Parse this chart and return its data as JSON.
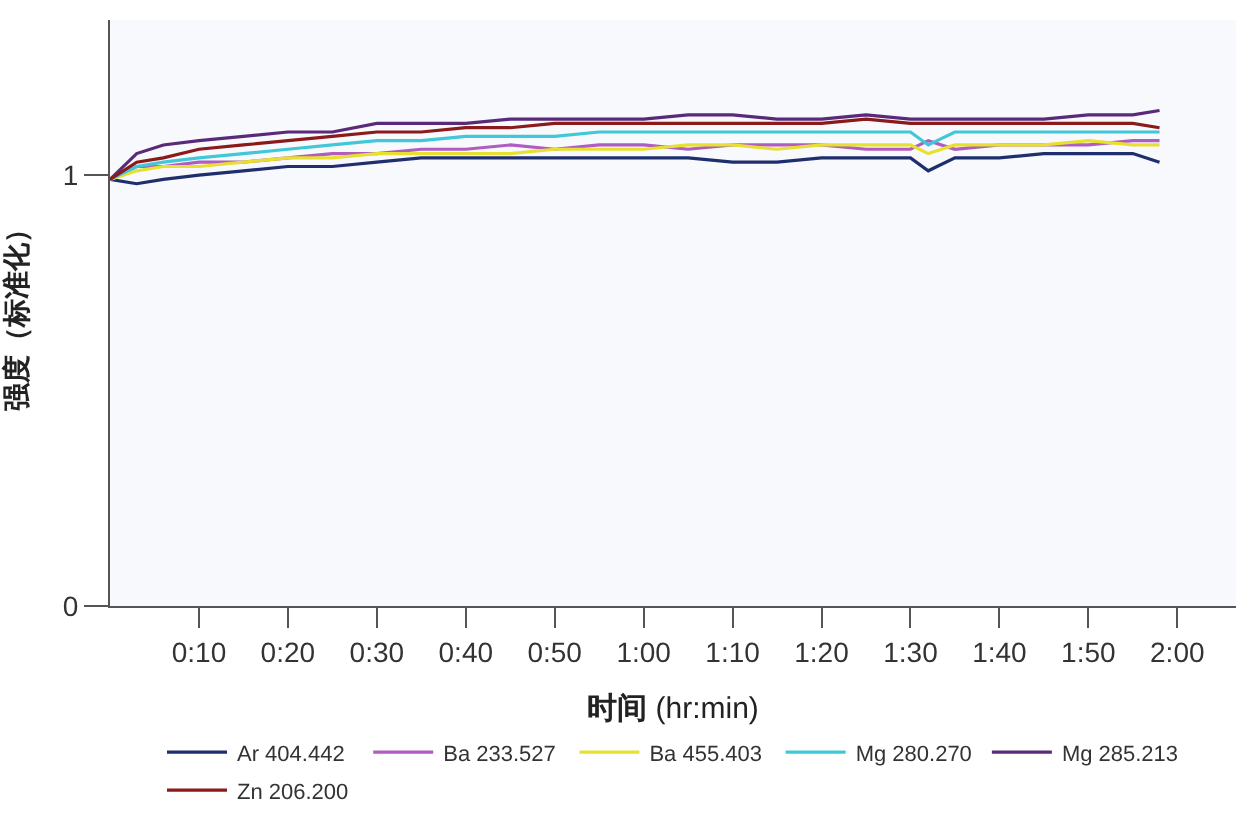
{
  "chart_data": {
    "type": "line",
    "xlabel": "时间 (hr:min)",
    "ylabel": "强度（标准化）",
    "x": [
      0,
      0.05,
      0.1,
      0.1667,
      0.25,
      0.3333,
      0.4167,
      0.5,
      0.5833,
      0.6667,
      0.75,
      0.8333,
      0.9167,
      1.0,
      1.0833,
      1.1667,
      1.25,
      1.3333,
      1.4167,
      1.5,
      1.5333,
      1.5833,
      1.6667,
      1.75,
      1.8333,
      1.9167,
      1.9667
    ],
    "series": [
      {
        "name": "Ar 404.442",
        "color": "#1f2f6e",
        "values": [
          0.99,
          0.98,
          0.99,
          1.0,
          1.01,
          1.02,
          1.02,
          1.03,
          1.04,
          1.04,
          1.04,
          1.04,
          1.04,
          1.04,
          1.04,
          1.03,
          1.03,
          1.04,
          1.04,
          1.04,
          1.01,
          1.04,
          1.04,
          1.05,
          1.05,
          1.05,
          1.03
        ]
      },
      {
        "name": "Ba 233.527",
        "color": "#b05cc0",
        "values": [
          0.99,
          1.02,
          1.02,
          1.03,
          1.03,
          1.04,
          1.05,
          1.05,
          1.06,
          1.06,
          1.07,
          1.06,
          1.07,
          1.07,
          1.06,
          1.07,
          1.07,
          1.07,
          1.06,
          1.06,
          1.08,
          1.06,
          1.07,
          1.07,
          1.07,
          1.08,
          1.08
        ]
      },
      {
        "name": "Ba 455.403",
        "color": "#e8e030",
        "values": [
          0.99,
          1.01,
          1.02,
          1.02,
          1.03,
          1.04,
          1.04,
          1.05,
          1.05,
          1.05,
          1.05,
          1.06,
          1.06,
          1.06,
          1.07,
          1.07,
          1.06,
          1.07,
          1.07,
          1.07,
          1.05,
          1.07,
          1.07,
          1.07,
          1.08,
          1.07,
          1.07
        ]
      },
      {
        "name": "Mg 280.270",
        "color": "#40c8d8",
        "values": [
          0.99,
          1.02,
          1.03,
          1.04,
          1.05,
          1.06,
          1.07,
          1.08,
          1.08,
          1.09,
          1.09,
          1.09,
          1.1,
          1.1,
          1.1,
          1.1,
          1.1,
          1.1,
          1.1,
          1.1,
          1.07,
          1.1,
          1.1,
          1.1,
          1.1,
          1.1,
          1.1
        ]
      },
      {
        "name": "Mg 285.213",
        "color": "#5a2a7a",
        "values": [
          0.99,
          1.05,
          1.07,
          1.08,
          1.09,
          1.1,
          1.1,
          1.12,
          1.12,
          1.12,
          1.13,
          1.13,
          1.13,
          1.13,
          1.14,
          1.14,
          1.13,
          1.13,
          1.14,
          1.13,
          1.13,
          1.13,
          1.13,
          1.13,
          1.14,
          1.14,
          1.15
        ]
      },
      {
        "name": "Zn 206.200",
        "color": "#8b1a1a",
        "values": [
          0.99,
          1.03,
          1.04,
          1.06,
          1.07,
          1.08,
          1.09,
          1.1,
          1.1,
          1.11,
          1.11,
          1.12,
          1.12,
          1.12,
          1.12,
          1.12,
          1.12,
          1.12,
          1.13,
          1.12,
          1.12,
          1.12,
          1.12,
          1.12,
          1.12,
          1.12,
          1.11
        ]
      }
    ],
    "xlim": [
      0,
      2.11
    ],
    "xticks": [
      {
        "value": 0.1667,
        "label": "0:10"
      },
      {
        "value": 0.3333,
        "label": "0:20"
      },
      {
        "value": 0.5,
        "label": "0:30"
      },
      {
        "value": 0.6667,
        "label": "0:40"
      },
      {
        "value": 0.8333,
        "label": "0:50"
      },
      {
        "value": 1.0,
        "label": "1:00"
      },
      {
        "value": 1.1667,
        "label": "1:10"
      },
      {
        "value": 1.3333,
        "label": "1:20"
      },
      {
        "value": 1.5,
        "label": "1:30"
      },
      {
        "value": 1.6667,
        "label": "1:40"
      },
      {
        "value": 1.8333,
        "label": "1:50"
      },
      {
        "value": 2.0,
        "label": "2:00"
      }
    ],
    "ylim": [
      0,
      1.36
    ],
    "yticks": [
      0,
      1
    ],
    "grid": false,
    "legend": "bottom",
    "marker": "none",
    "line_style": "solid"
  }
}
